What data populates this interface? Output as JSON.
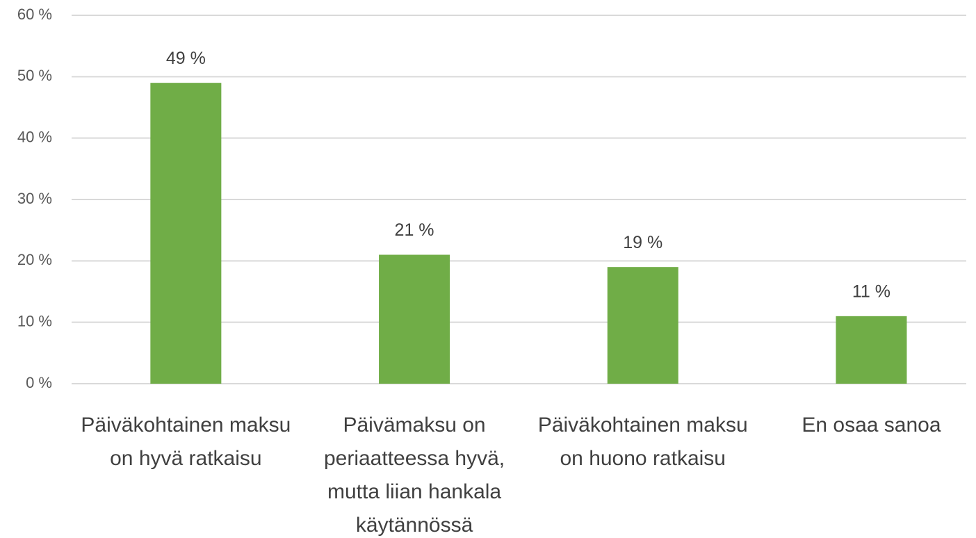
{
  "chart_data": {
    "type": "bar",
    "categories": [
      "Päiväkohtainen maksu on hyvä ratkaisu",
      "Päivämaksu on periaatteessa hyvä, mutta liian hankala käytännössä",
      "Päiväkohtainen maksu on huono ratkaisu",
      "En osaa sanoa"
    ],
    "values": [
      49,
      21,
      19,
      11
    ],
    "value_labels": [
      "49 %",
      "21 %",
      "19 %",
      "11 %"
    ],
    "color": "#70ad47",
    "ylim": [
      0,
      60
    ],
    "yticks": [
      {
        "value": 0,
        "label": "0 %"
      },
      {
        "value": 10,
        "label": "10 %"
      },
      {
        "value": 20,
        "label": "20 %"
      },
      {
        "value": 30,
        "label": "30 %"
      },
      {
        "value": 40,
        "label": "40 %"
      },
      {
        "value": 50,
        "label": "50 %"
      },
      {
        "value": 60,
        "label": "60 %"
      }
    ],
    "grid": true
  }
}
